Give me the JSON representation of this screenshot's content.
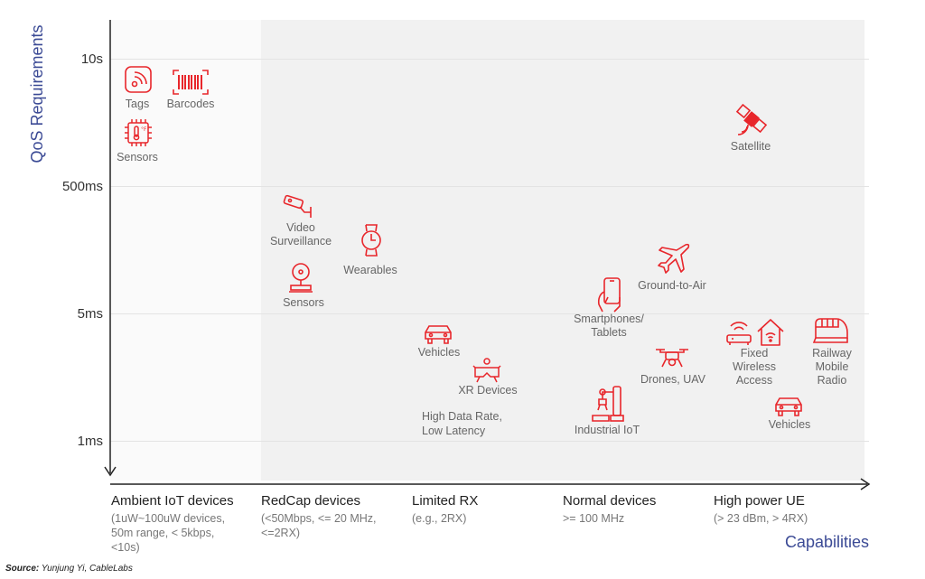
{
  "axes": {
    "y_title": "QoS Requirements",
    "x_title": "Capabilities",
    "y_ticks": [
      "10s",
      "500ms",
      "5ms",
      "1ms"
    ]
  },
  "categories": [
    {
      "name": "Ambient IoT devices",
      "detail": "(1uW~100uW devices,\n50m range, < 5kbps,\n<10s)"
    },
    {
      "name": "RedCap devices",
      "detail": "(<50Mbps, <= 20 MHz,\n<=2RX)"
    },
    {
      "name": "Limited RX",
      "detail": "(e.g., 2RX)"
    },
    {
      "name": "Normal devices",
      "detail": ">= 100 MHz"
    },
    {
      "name": "High power UE",
      "detail": "(> 23 dBm, > 4RX)"
    }
  ],
  "items": {
    "tags": "Tags",
    "barcodes": "Barcodes",
    "sensors_ambient": "Sensors",
    "video": "Video\nSurveillance",
    "wearables": "Wearables",
    "sensors_redcap": "Sensors",
    "vehicles_limited": "Vehicles",
    "xr": "XR Devices",
    "limited_note": "High Data Rate,\nLow Latency",
    "ground_air": "Ground-to-Air",
    "smartphones": "Smartphones/\nTablets",
    "drones": "Drones, UAV",
    "industrial": "Industrial IoT",
    "satellite": "Satellite",
    "fwa": "Fixed\nWireless\nAccess",
    "railway": "Railway\nMobile\nRadio",
    "vehicles_high": "Vehicles"
  },
  "source": {
    "label": "Source:",
    "text": "Yunjung Yi, CableLabs"
  },
  "colors": {
    "accent": "#e8262b",
    "axis_title": "#3b4a95",
    "band": "#f1f1f1"
  }
}
